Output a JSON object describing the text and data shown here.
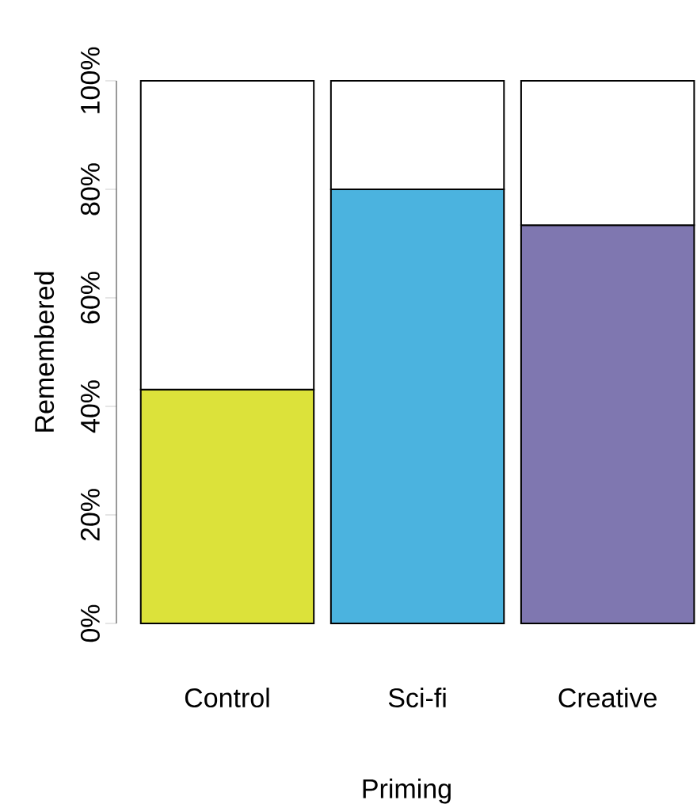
{
  "chart_data": {
    "type": "bar",
    "stacked": true,
    "xlabel": "Priming",
    "ylabel": "Remembered",
    "categories": [
      "Control",
      "Sci-fi",
      "Creative"
    ],
    "series": [
      {
        "colors": [
          "#dce23a",
          "#4bb3df",
          "#7f77b0"
        ],
        "values": [
          43.1,
          80,
          73.4
        ]
      },
      {
        "color": "#ffffff",
        "values": [
          56.9,
          20,
          26.6
        ]
      }
    ],
    "ylim": [
      0,
      100
    ],
    "yticks": [
      {
        "value": 0,
        "label": "0%"
      },
      {
        "value": 20,
        "label": "20%"
      },
      {
        "value": 40,
        "label": "40%"
      },
      {
        "value": 60,
        "label": "60%"
      },
      {
        "value": 80,
        "label": "80%"
      },
      {
        "value": 100,
        "label": "100%"
      }
    ]
  }
}
